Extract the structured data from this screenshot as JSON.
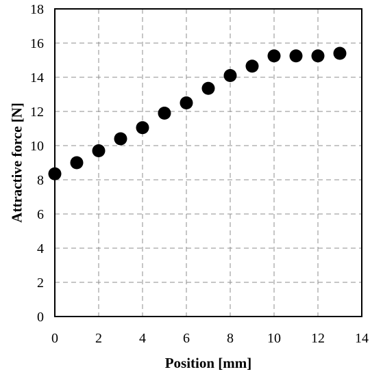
{
  "chart_data": {
    "type": "scatter",
    "title": "",
    "xlabel": "Position [mm]",
    "ylabel": "Attractive force [N]",
    "xlim": [
      0,
      14
    ],
    "ylim": [
      0,
      18
    ],
    "xticks": [
      "0",
      "2",
      "4",
      "6",
      "8",
      "10",
      "12",
      "14"
    ],
    "yticks": [
      "0",
      "2",
      "4",
      "6",
      "8",
      "10",
      "12",
      "14",
      "16",
      "18"
    ],
    "grid": true,
    "legend": "none",
    "marker_color": "#000000",
    "series": [
      {
        "x": [
          0,
          1,
          2,
          3,
          4,
          5,
          6,
          7,
          8,
          9,
          10,
          11,
          12,
          13
        ],
        "y": [
          8.35,
          9.0,
          9.7,
          10.4,
          11.05,
          11.9,
          12.5,
          13.35,
          14.1,
          14.65,
          15.25,
          15.25,
          15.25,
          15.4
        ]
      }
    ]
  }
}
